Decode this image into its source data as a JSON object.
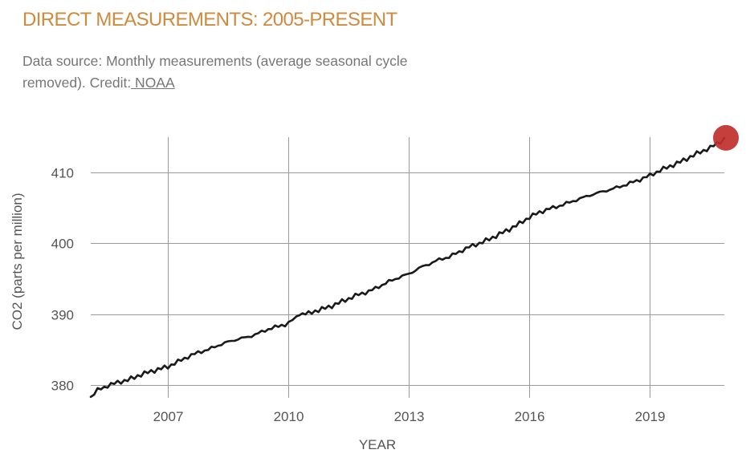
{
  "header": {
    "title": "DIRECT MEASUREMENTS: 2005-PRESENT",
    "subtitle_text": "Data source: Monthly measurements (average seasonal cycle removed). Credit:",
    "credit_link": " NOAA"
  },
  "colors": {
    "title": "#cf8a3e",
    "line": "#1a1a1a",
    "marker": "#c0302d"
  },
  "chart_data": {
    "type": "line",
    "xlabel": "YEAR",
    "ylabel": "CO2 (parts per million)",
    "xlim": [
      2005.08,
      2020.85
    ],
    "ylim": [
      378.2,
      415.0
    ],
    "x_ticks": [
      2007,
      2010,
      2013,
      2016,
      2019
    ],
    "y_ticks": [
      380,
      390,
      400,
      410
    ],
    "grid": true,
    "latest_point_marker": true,
    "series": [
      {
        "x": [
          2005.08,
          2005.25,
          2005.5,
          2005.75,
          2006.0,
          2006.25,
          2006.5,
          2006.75,
          2007.0,
          2007.25,
          2007.5,
          2007.75,
          2008.0,
          2008.25,
          2008.5,
          2008.75,
          2009.0,
          2009.25,
          2009.5,
          2009.75,
          2010.0,
          2010.2,
          2010.5,
          2010.75,
          2011.0,
          2011.25,
          2011.5,
          2011.75,
          2012.0,
          2012.25,
          2012.5,
          2012.75,
          2013.0,
          2013.25,
          2013.5,
          2013.75,
          2014.0,
          2014.25,
          2014.5,
          2014.75,
          2015.0,
          2015.25,
          2015.5,
          2015.75,
          2016.0,
          2016.25,
          2016.5,
          2016.75,
          2017.0,
          2017.25,
          2017.5,
          2017.75,
          2018.0,
          2018.25,
          2018.5,
          2018.75,
          2019.0,
          2019.25,
          2019.5,
          2019.75,
          2020.0,
          2020.25,
          2020.5,
          2020.75,
          2020.85
        ],
        "y": [
          378.3,
          379.3,
          379.9,
          380.4,
          380.7,
          381.3,
          381.8,
          382.2,
          382.6,
          383.3,
          384.0,
          384.6,
          385.0,
          385.6,
          386.1,
          386.5,
          386.8,
          387.3,
          387.9,
          388.3,
          388.7,
          389.8,
          390.1,
          390.6,
          391.0,
          391.6,
          392.2,
          392.8,
          393.2,
          393.9,
          394.6,
          395.2,
          395.7,
          396.5,
          397.1,
          397.7,
          398.1,
          398.8,
          399.5,
          400.0,
          400.6,
          401.3,
          402.0,
          402.8,
          403.7,
          404.4,
          404.9,
          405.3,
          405.8,
          406.3,
          406.8,
          407.2,
          407.6,
          408.0,
          408.5,
          409.0,
          409.6,
          410.3,
          410.9,
          411.5,
          412.2,
          412.9,
          413.5,
          414.4,
          414.9
        ]
      }
    ]
  }
}
